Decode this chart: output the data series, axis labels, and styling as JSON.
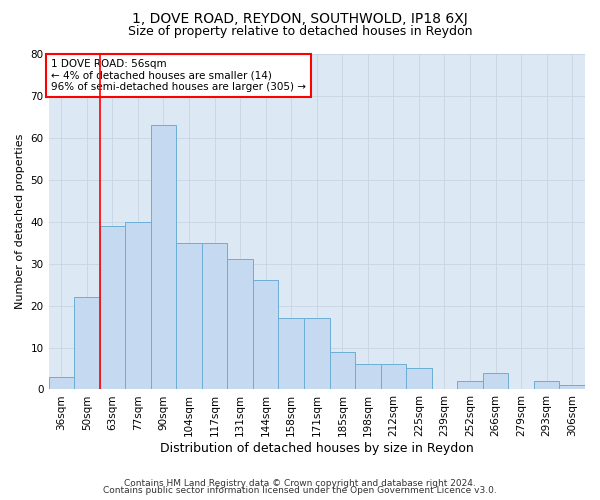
{
  "title_line1": "1, DOVE ROAD, REYDON, SOUTHWOLD, IP18 6XJ",
  "title_line2": "Size of property relative to detached houses in Reydon",
  "xlabel": "Distribution of detached houses by size in Reydon",
  "ylabel": "Number of detached properties",
  "footnote_line1": "Contains HM Land Registry data © Crown copyright and database right 2024.",
  "footnote_line2": "Contains public sector information licensed under the Open Government Licence v3.0.",
  "categories": [
    "36sqm",
    "50sqm",
    "63sqm",
    "77sqm",
    "90sqm",
    "104sqm",
    "117sqm",
    "131sqm",
    "144sqm",
    "158sqm",
    "171sqm",
    "185sqm",
    "198sqm",
    "212sqm",
    "225sqm",
    "239sqm",
    "252sqm",
    "266sqm",
    "279sqm",
    "293sqm",
    "306sqm"
  ],
  "values": [
    3,
    22,
    39,
    40,
    63,
    35,
    35,
    31,
    26,
    17,
    17,
    9,
    6,
    6,
    5,
    0,
    2,
    4,
    0,
    2,
    1
  ],
  "bar_color": "#c5d9f0",
  "bar_edge_color": "#6baed6",
  "red_line_x": 1.5,
  "annotation_box_text": "1 DOVE ROAD: 56sqm\n← 4% of detached houses are smaller (14)\n96% of semi-detached houses are larger (305) →",
  "ylim": [
    0,
    80
  ],
  "yticks": [
    0,
    10,
    20,
    30,
    40,
    50,
    60,
    70,
    80
  ],
  "grid_color": "#c8d4e3",
  "bg_color": "#dde8f5",
  "fig_bg_color": "#ffffff",
  "title1_fontsize": 10,
  "title2_fontsize": 9,
  "xlabel_fontsize": 9,
  "ylabel_fontsize": 8,
  "tick_fontsize": 7.5,
  "footnote_fontsize": 6.5
}
